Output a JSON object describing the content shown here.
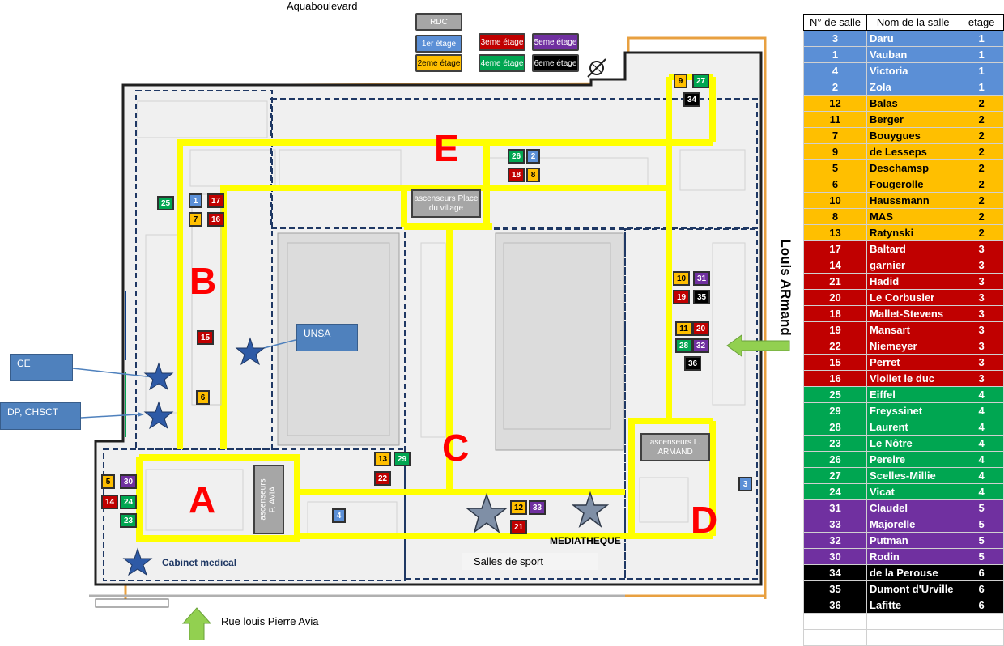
{
  "colors": {
    "1": "#5b8fd6",
    "2": "#ffbf00",
    "3": "#c00000",
    "4": "#00a651",
    "5": "#7030a0",
    "6": "#000000",
    "rdc": "#a6a6a6",
    "corridor": "#ffff00",
    "accent_red": "#ff0000",
    "callout": "#4f81bd"
  },
  "street_top": "Aquaboulevard",
  "street_right": "Louis ARmand",
  "street_bottom": "Rue louis Pierre Avia",
  "legend": [
    {
      "label": "RDC",
      "level": "rdc"
    },
    {
      "label": "1er étage",
      "level": "1"
    },
    {
      "label": "2eme étage",
      "level": "2"
    },
    {
      "label": "3eme étage",
      "level": "3"
    },
    {
      "label": "4eme étage",
      "level": "4"
    },
    {
      "label": "5eme étage",
      "level": "5"
    },
    {
      "label": "6eme étage",
      "level": "6"
    }
  ],
  "zones": [
    "A",
    "B",
    "C",
    "D",
    "E"
  ],
  "elevators": {
    "place_village": "ascenseurs Place du village",
    "armand": "ascenseurs L. ARMAND",
    "avia": "ascenseurs P. AVIA"
  },
  "callouts": {
    "unsa": "UNSA",
    "ce": "CE",
    "dp": "DP, CHSCT"
  },
  "places": {
    "cabinet": "Cabinet medical",
    "sport": "Salles de sport",
    "mediatheque": "MEDIATHEQUE"
  },
  "map_rooms": [
    {
      "n": "9",
      "level": "2"
    },
    {
      "n": "27",
      "level": "4"
    },
    {
      "n": "34",
      "level": "6"
    },
    {
      "n": "26",
      "level": "4"
    },
    {
      "n": "2",
      "level": "1"
    },
    {
      "n": "18",
      "level": "3"
    },
    {
      "n": "8",
      "level": "2"
    },
    {
      "n": "25",
      "level": "4"
    },
    {
      "n": "1",
      "level": "1"
    },
    {
      "n": "17",
      "level": "3"
    },
    {
      "n": "7",
      "level": "2"
    },
    {
      "n": "16",
      "level": "3"
    },
    {
      "n": "15",
      "level": "3"
    },
    {
      "n": "6",
      "level": "2"
    },
    {
      "n": "10",
      "level": "2"
    },
    {
      "n": "31",
      "level": "5"
    },
    {
      "n": "19",
      "level": "3"
    },
    {
      "n": "35",
      "level": "6"
    },
    {
      "n": "11",
      "level": "2"
    },
    {
      "n": "20",
      "level": "3"
    },
    {
      "n": "28",
      "level": "4"
    },
    {
      "n": "32",
      "level": "5"
    },
    {
      "n": "36",
      "level": "6"
    },
    {
      "n": "13",
      "level": "2"
    },
    {
      "n": "29",
      "level": "4"
    },
    {
      "n": "22",
      "level": "3"
    },
    {
      "n": "5",
      "level": "2"
    },
    {
      "n": "30",
      "level": "5"
    },
    {
      "n": "14",
      "level": "3"
    },
    {
      "n": "24",
      "level": "4"
    },
    {
      "n": "23",
      "level": "4"
    },
    {
      "n": "4",
      "level": "1"
    },
    {
      "n": "12",
      "level": "2"
    },
    {
      "n": "33",
      "level": "5"
    },
    {
      "n": "21",
      "level": "3"
    },
    {
      "n": "3",
      "level": "1"
    }
  ],
  "table": {
    "headers": [
      "N° de salle",
      "Nom de la salle",
      "etage"
    ],
    "rows": [
      {
        "n": "3",
        "name": "Daru",
        "level": "1"
      },
      {
        "n": "1",
        "name": "Vauban",
        "level": "1"
      },
      {
        "n": "4",
        "name": "Victoria",
        "level": "1"
      },
      {
        "n": "2",
        "name": "Zola",
        "level": "1"
      },
      {
        "n": "12",
        "name": "Balas",
        "level": "2"
      },
      {
        "n": "11",
        "name": "Berger",
        "level": "2"
      },
      {
        "n": "7",
        "name": "Bouygues",
        "level": "2"
      },
      {
        "n": "9",
        "name": "de Lesseps",
        "level": "2"
      },
      {
        "n": "5",
        "name": "Deschamsp",
        "level": "2"
      },
      {
        "n": "6",
        "name": "Fougerolle",
        "level": "2"
      },
      {
        "n": "10",
        "name": "Haussmann",
        "level": "2"
      },
      {
        "n": "8",
        "name": "MAS",
        "level": "2"
      },
      {
        "n": "13",
        "name": "Ratynski",
        "level": "2"
      },
      {
        "n": "17",
        "name": "Baltard",
        "level": "3"
      },
      {
        "n": "14",
        "name": "garnier",
        "level": "3"
      },
      {
        "n": "21",
        "name": "Hadid",
        "level": "3"
      },
      {
        "n": "20",
        "name": "Le Corbusier",
        "level": "3"
      },
      {
        "n": "18",
        "name": "Mallet-Stevens",
        "level": "3"
      },
      {
        "n": "19",
        "name": "Mansart",
        "level": "3"
      },
      {
        "n": "22",
        "name": "Niemeyer",
        "level": "3"
      },
      {
        "n": "15",
        "name": "Perret",
        "level": "3"
      },
      {
        "n": "16",
        "name": "Viollet le duc",
        "level": "3"
      },
      {
        "n": "25",
        "name": "Eiffel",
        "level": "4"
      },
      {
        "n": "29",
        "name": "Freyssinet",
        "level": "4"
      },
      {
        "n": "28",
        "name": "Laurent",
        "level": "4"
      },
      {
        "n": "23",
        "name": "Le Nôtre",
        "level": "4"
      },
      {
        "n": "26",
        "name": "Pereire",
        "level": "4"
      },
      {
        "n": "27",
        "name": "Scelles-Millie",
        "level": "4"
      },
      {
        "n": "24",
        "name": "Vicat",
        "level": "4"
      },
      {
        "n": "31",
        "name": "Claudel",
        "level": "5"
      },
      {
        "n": "33",
        "name": "Majorelle",
        "level": "5"
      },
      {
        "n": "32",
        "name": "Putman",
        "level": "5"
      },
      {
        "n": "30",
        "name": "Rodin",
        "level": "5"
      },
      {
        "n": "34",
        "name": "de la Perouse",
        "level": "6"
      },
      {
        "n": "35",
        "name": "Dumont d'Urville",
        "level": "6"
      },
      {
        "n": "36",
        "name": "Lafitte",
        "level": "6"
      }
    ]
  }
}
